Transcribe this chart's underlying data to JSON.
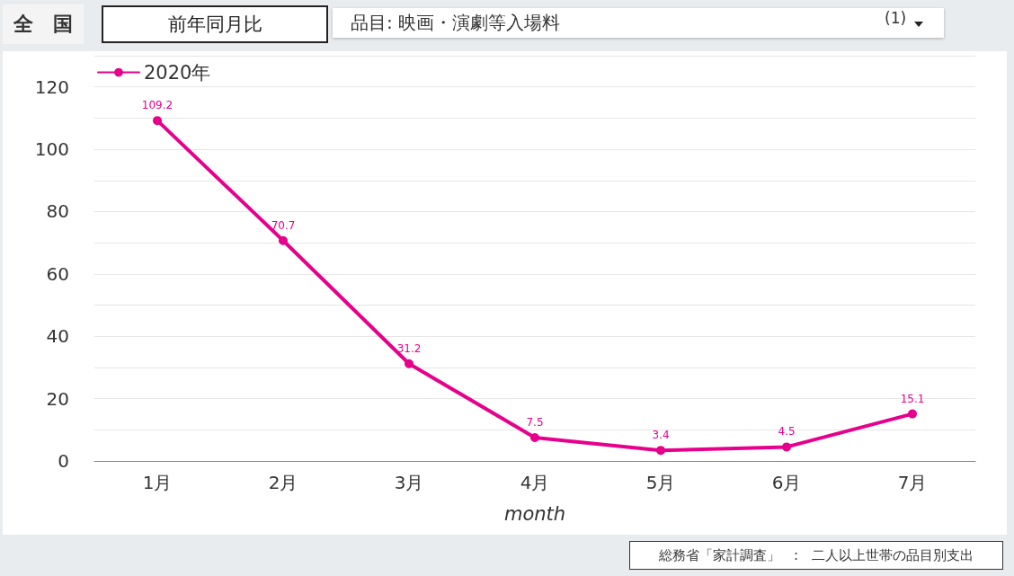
{
  "chart_data": {
    "type": "line",
    "title": "品目: 映画・演劇等入場料",
    "subtitle": "前年同月比",
    "annotations": [
      "全　国",
      "(1)",
      "総務省「家計調査」　:　二人以上世帯の品目別支出"
    ],
    "xlabel": "month",
    "categories": [
      "1月",
      "2月",
      "3月",
      "4月",
      "5月",
      "6月",
      "7月"
    ],
    "series": [
      {
        "name": "2020年",
        "color": "#e6008c",
        "values": [
          109.2,
          70.7,
          31.2,
          7.5,
          3.4,
          4.5,
          15.1
        ]
      }
    ],
    "ylim": [
      0,
      130
    ],
    "yticks": [
      0,
      {
        "value": 10,
        "label": null
      },
      20,
      {
        "value": 30,
        "label": null
      },
      40,
      {
        "value": 50,
        "label": null
      },
      60,
      {
        "value": 70,
        "label": null
      },
      80,
      {
        "value": 90,
        "label": null
      },
      100,
      {
        "value": 110,
        "label": null
      },
      120,
      {
        "value": 130,
        "label": null
      }
    ],
    "grid": "y",
    "legend": "top left",
    "marker": "circle",
    "line_style": "solid",
    "data_labels": true
  }
}
